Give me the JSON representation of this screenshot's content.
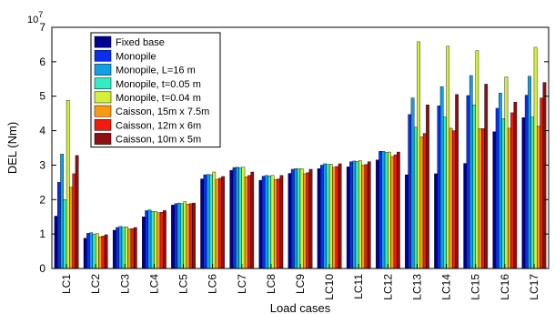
{
  "chart_data": {
    "type": "bar",
    "xlabel": "Load cases",
    "ylabel": "DEL (Nm)",
    "y_exponent": "x 10^7",
    "exp_base": "10",
    "exp_power": "7",
    "ylim": [
      0,
      7
    ],
    "yticks": [
      "0",
      "1",
      "2",
      "3",
      "4",
      "5",
      "6",
      "7"
    ],
    "grid": false,
    "legend_position": "top-left",
    "categories": [
      "LC1",
      "LC2",
      "LC3",
      "LC4",
      "LC5",
      "LC6",
      "LC7",
      "LC8",
      "LC9",
      "LC10",
      "LC11",
      "LC12",
      "LC13",
      "LC14",
      "LC15",
      "LC16",
      "LC17"
    ],
    "series": [
      {
        "name": "Fixed base",
        "color": "#00008f",
        "values": [
          1.52,
          0.88,
          1.11,
          1.5,
          1.84,
          2.6,
          2.85,
          2.56,
          2.76,
          2.9,
          2.95,
          3.15,
          2.72,
          2.75,
          3.05,
          3.97,
          4.38
        ]
      },
      {
        "name": "Monopile",
        "color": "#0a2df0",
        "values": [
          2.5,
          1.02,
          1.19,
          1.68,
          1.88,
          2.72,
          2.93,
          2.68,
          2.88,
          3.0,
          3.1,
          3.4,
          4.47,
          4.72,
          5.02,
          4.65,
          5.03
        ]
      },
      {
        "name": "Monopile, L=16 m",
        "color": "#0fa0e8",
        "values": [
          3.32,
          1.04,
          1.22,
          1.7,
          1.9,
          2.73,
          2.94,
          2.7,
          2.9,
          3.04,
          3.12,
          3.4,
          4.95,
          5.28,
          5.6,
          5.09,
          5.58
        ]
      },
      {
        "name": "Monopile, t=0.05 m",
        "color": "#33ecc6",
        "values": [
          2.0,
          1.0,
          1.2,
          1.66,
          1.88,
          2.72,
          2.93,
          2.69,
          2.89,
          3.02,
          3.11,
          3.37,
          4.1,
          4.4,
          4.75,
          4.35,
          4.4
        ]
      },
      {
        "name": "Monopile, t=0.04 m",
        "color": "#d4f038",
        "values": [
          4.88,
          1.01,
          1.21,
          1.66,
          1.94,
          2.8,
          2.94,
          2.7,
          2.9,
          3.03,
          3.13,
          3.38,
          6.58,
          6.45,
          6.32,
          5.56,
          6.42
        ]
      },
      {
        "name": "Caisson, 15m x 7.5m",
        "color": "#fa9a10",
        "values": [
          2.36,
          0.92,
          1.15,
          1.62,
          1.87,
          2.59,
          2.66,
          2.58,
          2.75,
          2.94,
          3.0,
          3.25,
          3.82,
          4.07,
          4.06,
          4.07,
          4.13
        ]
      },
      {
        "name": "Caisson, 12m x 6m",
        "color": "#f01b0c",
        "values": [
          2.75,
          0.94,
          1.16,
          1.63,
          1.88,
          2.62,
          2.7,
          2.6,
          2.78,
          2.96,
          3.02,
          3.3,
          3.92,
          4.0,
          4.06,
          4.52,
          4.95
        ]
      },
      {
        "name": "Caisson, 10m x 5m",
        "color": "#8e1010",
        "values": [
          3.28,
          0.98,
          1.19,
          1.68,
          1.9,
          2.67,
          2.8,
          2.7,
          2.88,
          3.04,
          3.1,
          3.38,
          4.75,
          5.05,
          5.35,
          4.83,
          5.4
        ]
      }
    ]
  }
}
